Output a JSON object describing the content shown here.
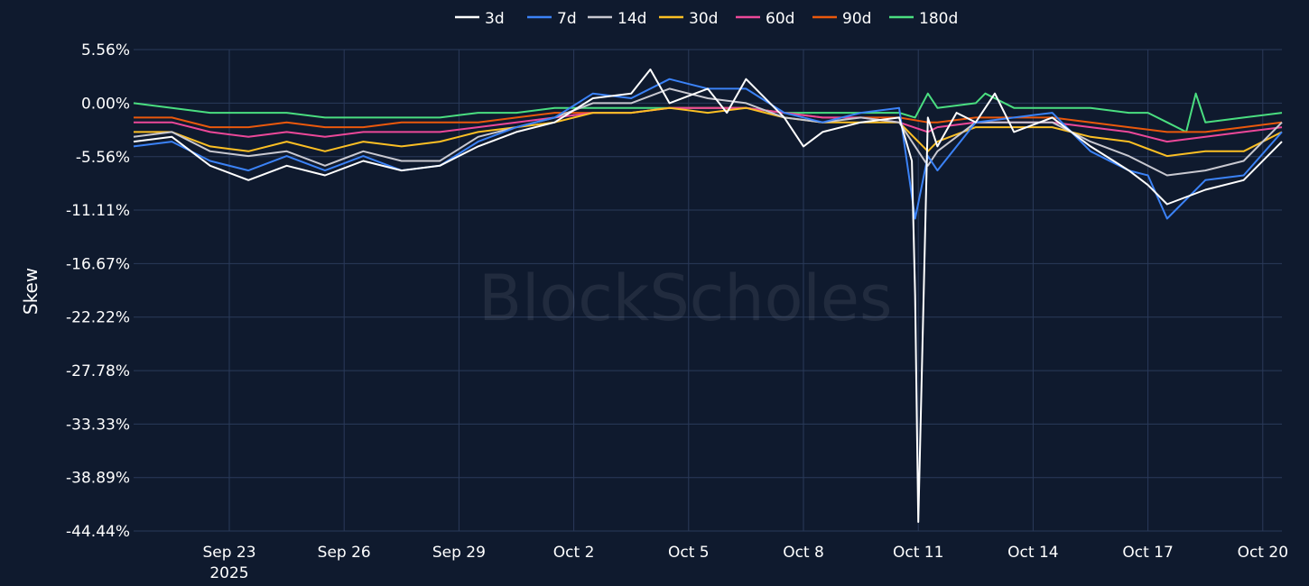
{
  "watermark": "BlockScholes",
  "colors": {
    "background": "#0f1a2e",
    "grid": "#2a3a5a",
    "text": "#ffffff"
  },
  "chart_data": {
    "type": "line",
    "title": "",
    "xlabel": "",
    "ylabel": "Skew",
    "grid": true,
    "legend_position": "top-center",
    "x_range": [
      "2025-09-20T12:00",
      "2025-10-20T12:00"
    ],
    "x_ticks": [
      {
        "date": "2025-09-23",
        "label": "Sep 23",
        "sublabel": "2025"
      },
      {
        "date": "2025-09-26",
        "label": "Sep 26"
      },
      {
        "date": "2025-09-29",
        "label": "Sep 29"
      },
      {
        "date": "2025-10-02",
        "label": "Oct 2"
      },
      {
        "date": "2025-10-05",
        "label": "Oct 5"
      },
      {
        "date": "2025-10-08",
        "label": "Oct 8"
      },
      {
        "date": "2025-10-11",
        "label": "Oct 11"
      },
      {
        "date": "2025-10-14",
        "label": "Oct 14"
      },
      {
        "date": "2025-10-17",
        "label": "Oct 17"
      },
      {
        "date": "2025-10-20",
        "label": "Oct 20"
      }
    ],
    "ylim": [
      -44.44,
      5.56
    ],
    "y_ticks": [
      5.56,
      0.0,
      -5.56,
      -11.11,
      -16.67,
      -22.22,
      -27.78,
      -33.33,
      -38.89,
      -44.44
    ],
    "y_tick_labels": [
      "5.56%",
      "0.00%",
      "-5.56%",
      "-11.11%",
      "-16.67%",
      "-22.22%",
      "-27.78%",
      "-33.33%",
      "-38.89%",
      "-44.44%"
    ],
    "series": [
      {
        "name": "3d",
        "color": "#ffffff",
        "x": [
          "2025-09-20T12:00",
          "2025-09-21T12:00",
          "2025-09-22T12:00",
          "2025-09-23T12:00",
          "2025-09-24T12:00",
          "2025-09-25T12:00",
          "2025-09-26T12:00",
          "2025-09-27T12:00",
          "2025-09-28T12:00",
          "2025-09-29T12:00",
          "2025-09-30T12:00",
          "2025-10-01T12:00",
          "2025-10-02T12:00",
          "2025-10-03T12:00",
          "2025-10-04T00:00",
          "2025-10-04T12:00",
          "2025-10-05T12:00",
          "2025-10-06T00:00",
          "2025-10-06T12:00",
          "2025-10-07T12:00",
          "2025-10-08T00:00",
          "2025-10-08T12:00",
          "2025-10-09T12:00",
          "2025-10-10T12:00",
          "2025-10-10T20:00",
          "2025-10-10T22:00",
          "2025-10-11T00:00",
          "2025-10-11T06:00",
          "2025-10-11T12:00",
          "2025-10-12T00:00",
          "2025-10-12T12:00",
          "2025-10-13T00:00",
          "2025-10-13T12:00",
          "2025-10-14T12:00",
          "2025-10-15T12:00",
          "2025-10-16T12:00",
          "2025-10-17T00:00",
          "2025-10-17T12:00",
          "2025-10-18T12:00",
          "2025-10-19T12:00",
          "2025-10-20T12:00"
        ],
        "y": [
          -4.0,
          -3.5,
          -6.5,
          -8.0,
          -6.5,
          -7.5,
          -6.0,
          -7.0,
          -6.5,
          -4.5,
          -3.0,
          -2.0,
          0.5,
          1.0,
          3.5,
          0.0,
          1.5,
          -1.0,
          2.5,
          -1.5,
          -4.5,
          -3.0,
          -2.0,
          -1.5,
          -6.0,
          -20.0,
          -43.5,
          -1.5,
          -4.5,
          -1.0,
          -2.0,
          1.0,
          -3.0,
          -1.5,
          -4.5,
          -7.0,
          -8.5,
          -10.5,
          -9.0,
          -8.0,
          -4.0
        ]
      },
      {
        "name": "7d",
        "color": "#3b82f6",
        "x": [
          "2025-09-20T12:00",
          "2025-09-21T12:00",
          "2025-09-22T12:00",
          "2025-09-23T12:00",
          "2025-09-24T12:00",
          "2025-09-25T12:00",
          "2025-09-26T12:00",
          "2025-09-27T12:00",
          "2025-09-28T12:00",
          "2025-09-29T12:00",
          "2025-09-30T12:00",
          "2025-10-01T12:00",
          "2025-10-02T12:00",
          "2025-10-03T12:00",
          "2025-10-04T12:00",
          "2025-10-05T12:00",
          "2025-10-06T12:00",
          "2025-10-07T12:00",
          "2025-10-08T12:00",
          "2025-10-09T12:00",
          "2025-10-10T12:00",
          "2025-10-10T22:00",
          "2025-10-11T06:00",
          "2025-10-11T12:00",
          "2025-10-12T12:00",
          "2025-10-13T12:00",
          "2025-10-14T12:00",
          "2025-10-15T12:00",
          "2025-10-16T12:00",
          "2025-10-17T00:00",
          "2025-10-17T12:00",
          "2025-10-18T12:00",
          "2025-10-19T12:00",
          "2025-10-20T12:00"
        ],
        "y": [
          -4.5,
          -4.0,
          -6.0,
          -7.0,
          -5.5,
          -7.0,
          -5.5,
          -7.0,
          -6.5,
          -4.0,
          -2.5,
          -1.5,
          1.0,
          0.5,
          2.5,
          1.5,
          1.5,
          -1.0,
          -2.0,
          -1.0,
          -0.5,
          -12.0,
          -5.5,
          -7.0,
          -2.0,
          -1.5,
          -1.0,
          -5.0,
          -7.0,
          -7.5,
          -12.0,
          -8.0,
          -7.5,
          -3.0
        ]
      },
      {
        "name": "14d",
        "color": "#c8c8d0",
        "x": [
          "2025-09-20T12:00",
          "2025-09-21T12:00",
          "2025-09-22T12:00",
          "2025-09-23T12:00",
          "2025-09-24T12:00",
          "2025-09-25T12:00",
          "2025-09-26T12:00",
          "2025-09-27T12:00",
          "2025-09-28T12:00",
          "2025-09-29T12:00",
          "2025-09-30T12:00",
          "2025-10-01T12:00",
          "2025-10-02T12:00",
          "2025-10-03T12:00",
          "2025-10-04T12:00",
          "2025-10-05T12:00",
          "2025-10-06T12:00",
          "2025-10-07T12:00",
          "2025-10-08T12:00",
          "2025-10-09T12:00",
          "2025-10-10T12:00",
          "2025-10-11T06:00",
          "2025-10-11T12:00",
          "2025-10-12T12:00",
          "2025-10-13T12:00",
          "2025-10-14T12:00",
          "2025-10-15T12:00",
          "2025-10-16T12:00",
          "2025-10-17T12:00",
          "2025-10-18T12:00",
          "2025-10-19T12:00",
          "2025-10-20T12:00"
        ],
        "y": [
          -3.5,
          -3.0,
          -5.0,
          -5.5,
          -5.0,
          -6.5,
          -5.0,
          -6.0,
          -6.0,
          -3.5,
          -2.5,
          -1.5,
          0.0,
          0.0,
          1.5,
          0.5,
          0.0,
          -1.5,
          -2.0,
          -1.5,
          -2.0,
          -6.5,
          -5.0,
          -2.0,
          -2.0,
          -2.0,
          -4.0,
          -5.5,
          -7.5,
          -7.0,
          -6.0,
          -2.0
        ]
      },
      {
        "name": "30d",
        "color": "#fbbf24",
        "x": [
          "2025-09-20T12:00",
          "2025-09-21T12:00",
          "2025-09-22T12:00",
          "2025-09-23T12:00",
          "2025-09-24T12:00",
          "2025-09-25T12:00",
          "2025-09-26T12:00",
          "2025-09-27T12:00",
          "2025-09-28T12:00",
          "2025-09-29T12:00",
          "2025-09-30T12:00",
          "2025-10-01T12:00",
          "2025-10-02T12:00",
          "2025-10-03T12:00",
          "2025-10-04T12:00",
          "2025-10-05T12:00",
          "2025-10-06T12:00",
          "2025-10-07T12:00",
          "2025-10-08T12:00",
          "2025-10-09T12:00",
          "2025-10-10T12:00",
          "2025-10-11T06:00",
          "2025-10-11T12:00",
          "2025-10-12T12:00",
          "2025-10-13T12:00",
          "2025-10-14T12:00",
          "2025-10-15T12:00",
          "2025-10-16T12:00",
          "2025-10-17T12:00",
          "2025-10-18T12:00",
          "2025-10-19T12:00",
          "2025-10-20T12:00"
        ],
        "y": [
          -3.0,
          -3.0,
          -4.5,
          -5.0,
          -4.0,
          -5.0,
          -4.0,
          -4.5,
          -4.0,
          -3.0,
          -2.5,
          -2.0,
          -1.0,
          -1.0,
          -0.5,
          -1.0,
          -0.5,
          -1.5,
          -2.0,
          -2.0,
          -2.0,
          -5.0,
          -4.0,
          -2.5,
          -2.5,
          -2.5,
          -3.5,
          -4.0,
          -5.5,
          -5.0,
          -5.0,
          -3.0
        ]
      },
      {
        "name": "60d",
        "color": "#ec4899",
        "x": [
          "2025-09-20T12:00",
          "2025-09-21T12:00",
          "2025-09-22T12:00",
          "2025-09-23T12:00",
          "2025-09-24T12:00",
          "2025-09-25T12:00",
          "2025-09-26T12:00",
          "2025-09-27T12:00",
          "2025-09-28T12:00",
          "2025-09-29T12:00",
          "2025-09-30T12:00",
          "2025-10-01T12:00",
          "2025-10-02T12:00",
          "2025-10-03T12:00",
          "2025-10-04T12:00",
          "2025-10-05T12:00",
          "2025-10-06T12:00",
          "2025-10-07T12:00",
          "2025-10-08T12:00",
          "2025-10-09T12:00",
          "2025-10-10T12:00",
          "2025-10-11T06:00",
          "2025-10-11T12:00",
          "2025-10-12T12:00",
          "2025-10-13T12:00",
          "2025-10-14T12:00",
          "2025-10-15T12:00",
          "2025-10-16T12:00",
          "2025-10-17T12:00",
          "2025-10-18T12:00",
          "2025-10-19T12:00",
          "2025-10-20T12:00"
        ],
        "y": [
          -2.0,
          -2.0,
          -3.0,
          -3.5,
          -3.0,
          -3.5,
          -3.0,
          -3.0,
          -3.0,
          -2.5,
          -2.0,
          -1.5,
          -1.0,
          -1.0,
          -0.5,
          -0.5,
          -0.5,
          -1.0,
          -1.5,
          -1.5,
          -2.0,
          -3.0,
          -2.5,
          -2.0,
          -2.0,
          -2.0,
          -2.5,
          -3.0,
          -4.0,
          -3.5,
          -3.0,
          -2.5
        ]
      },
      {
        "name": "90d",
        "color": "#ea580c",
        "x": [
          "2025-09-20T12:00",
          "2025-09-21T12:00",
          "2025-09-22T12:00",
          "2025-09-23T12:00",
          "2025-09-24T12:00",
          "2025-09-25T12:00",
          "2025-09-26T12:00",
          "2025-09-27T12:00",
          "2025-09-28T12:00",
          "2025-09-29T12:00",
          "2025-09-30T12:00",
          "2025-10-01T12:00",
          "2025-10-02T12:00",
          "2025-10-03T12:00",
          "2025-10-04T12:00",
          "2025-10-05T12:00",
          "2025-10-06T12:00",
          "2025-10-07T12:00",
          "2025-10-08T12:00",
          "2025-10-09T12:00",
          "2025-10-10T12:00",
          "2025-10-11T06:00",
          "2025-10-11T12:00",
          "2025-10-12T12:00",
          "2025-10-13T12:00",
          "2025-10-14T12:00",
          "2025-10-15T12:00",
          "2025-10-16T12:00",
          "2025-10-17T12:00",
          "2025-10-18T12:00",
          "2025-10-19T12:00",
          "2025-10-20T12:00"
        ],
        "y": [
          -1.5,
          -1.5,
          -2.5,
          -2.5,
          -2.0,
          -2.5,
          -2.5,
          -2.0,
          -2.0,
          -2.0,
          -1.5,
          -1.0,
          -1.0,
          -1.0,
          -0.5,
          -0.5,
          -0.5,
          -1.0,
          -1.5,
          -1.5,
          -1.5,
          -2.0,
          -2.0,
          -1.5,
          -1.5,
          -1.5,
          -2.0,
          -2.5,
          -3.0,
          -3.0,
          -2.5,
          -2.0
        ]
      },
      {
        "name": "180d",
        "color": "#4ade80",
        "x": [
          "2025-09-20T12:00",
          "2025-09-21T12:00",
          "2025-09-22T12:00",
          "2025-09-23T12:00",
          "2025-09-24T12:00",
          "2025-09-25T12:00",
          "2025-09-26T12:00",
          "2025-09-27T12:00",
          "2025-09-28T12:00",
          "2025-09-29T12:00",
          "2025-09-30T12:00",
          "2025-10-01T12:00",
          "2025-10-02T12:00",
          "2025-10-03T12:00",
          "2025-10-04T12:00",
          "2025-10-05T12:00",
          "2025-10-06T12:00",
          "2025-10-07T12:00",
          "2025-10-08T12:00",
          "2025-10-09T12:00",
          "2025-10-10T12:00",
          "2025-10-10T22:00",
          "2025-10-11T06:00",
          "2025-10-11T12:00",
          "2025-10-12T12:00",
          "2025-10-12T18:00",
          "2025-10-13T12:00",
          "2025-10-14T12:00",
          "2025-10-15T12:00",
          "2025-10-16T12:00",
          "2025-10-17T00:00",
          "2025-10-17T12:00",
          "2025-10-18T00:00",
          "2025-10-18T06:00",
          "2025-10-18T12:00",
          "2025-10-19T12:00",
          "2025-10-20T12:00"
        ],
        "y": [
          0.0,
          -0.5,
          -1.0,
          -1.0,
          -1.0,
          -1.5,
          -1.5,
          -1.5,
          -1.5,
          -1.0,
          -1.0,
          -0.5,
          -0.5,
          -0.5,
          -0.5,
          -0.5,
          -0.5,
          -1.0,
          -1.0,
          -1.0,
          -1.0,
          -1.5,
          1.0,
          -0.5,
          0.0,
          1.0,
          -0.5,
          -0.5,
          -0.5,
          -1.0,
          -1.0,
          -2.0,
          -3.0,
          1.0,
          -2.0,
          -1.5,
          -1.0
        ]
      }
    ]
  }
}
